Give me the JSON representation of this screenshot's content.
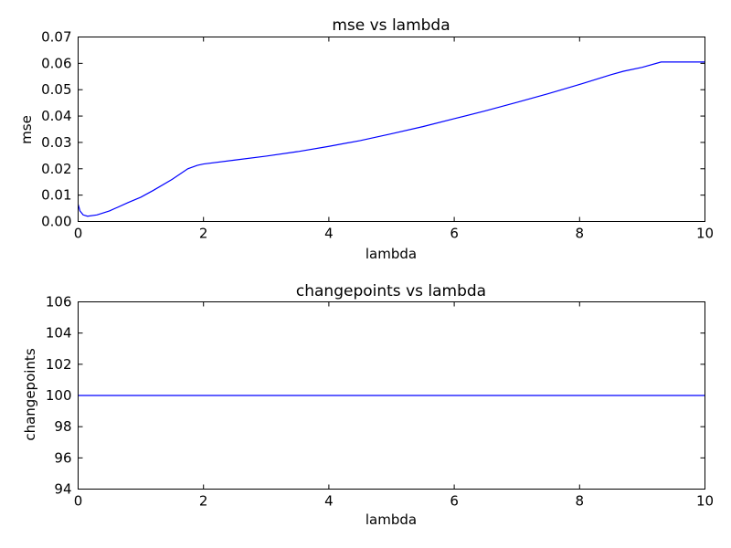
{
  "chart_data": [
    {
      "type": "line",
      "title": "mse vs lambda",
      "xlabel": "lambda",
      "ylabel": "mse",
      "xlim": [
        0,
        10
      ],
      "ylim": [
        0,
        0.07
      ],
      "xticks": [
        0,
        2,
        4,
        6,
        8,
        10
      ],
      "xtick_labels": [
        "0",
        "2",
        "4",
        "6",
        "8",
        "10"
      ],
      "yticks": [
        0,
        0.01,
        0.02,
        0.03,
        0.04,
        0.05,
        0.06,
        0.07
      ],
      "ytick_labels": [
        "0.00",
        "0.01",
        "0.02",
        "0.03",
        "0.04",
        "0.05",
        "0.06",
        "0.07"
      ],
      "grid": false,
      "series_color": "#0000ff",
      "series": [
        {
          "x": [
            0,
            0.03,
            0.08,
            0.15,
            0.3,
            0.5,
            0.8,
            1.0,
            1.2,
            1.5,
            1.75,
            1.9,
            2.0,
            2.5,
            3.0,
            3.5,
            4.0,
            4.5,
            5.0,
            5.5,
            6.0,
            6.5,
            7.0,
            7.5,
            8.0,
            8.5,
            8.7,
            9.0,
            9.3,
            10.0
          ],
          "y": [
            0.0065,
            0.004,
            0.0025,
            0.002,
            0.0025,
            0.004,
            0.0072,
            0.0092,
            0.0118,
            0.016,
            0.02,
            0.0213,
            0.0218,
            0.0233,
            0.0248,
            0.0265,
            0.0285,
            0.0307,
            0.0333,
            0.036,
            0.039,
            0.042,
            0.0452,
            0.0485,
            0.052,
            0.0557,
            0.057,
            0.0585,
            0.0605,
            0.0605
          ]
        }
      ]
    },
    {
      "type": "line",
      "title": "changepoints vs lambda",
      "xlabel": "lambda",
      "ylabel": "changepoints",
      "xlim": [
        0,
        10
      ],
      "ylim": [
        94,
        106
      ],
      "xticks": [
        0,
        2,
        4,
        6,
        8,
        10
      ],
      "xtick_labels": [
        "0",
        "2",
        "4",
        "6",
        "8",
        "10"
      ],
      "yticks": [
        94,
        96,
        98,
        100,
        102,
        104,
        106
      ],
      "ytick_labels": [
        "94",
        "96",
        "98",
        "100",
        "102",
        "104",
        "106"
      ],
      "grid": false,
      "series_color": "#0000ff",
      "series": [
        {
          "x": [
            0,
            10
          ],
          "y": [
            100,
            100
          ]
        }
      ]
    }
  ]
}
